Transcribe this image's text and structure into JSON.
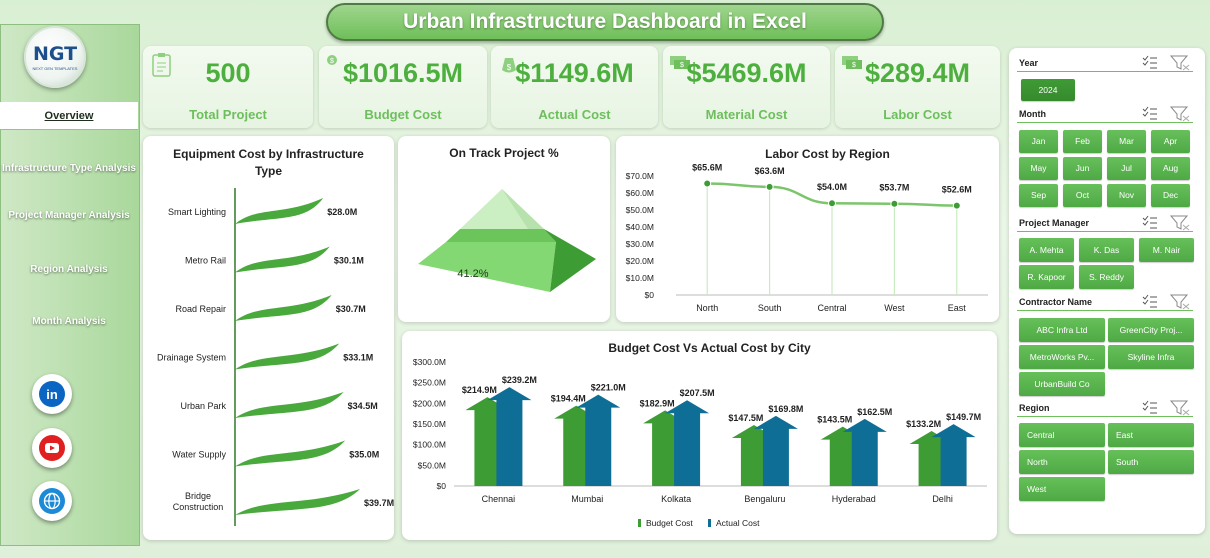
{
  "title": "Urban Infrastructure Dashboard in Excel",
  "logo": {
    "main": "NGT",
    "sub": "NEXT GEN TEMPLATES"
  },
  "nav": [
    "Overview",
    "Infrastructure Type Analysis",
    "Project Manager Analysis",
    "Region Analysis",
    "Month Analysis"
  ],
  "social": [
    "linkedin-icon",
    "youtube-icon",
    "globe-icon"
  ],
  "kpis": [
    {
      "value": "500",
      "label": "Total Project",
      "icon": "clipboard-icon"
    },
    {
      "value": "$1016.5M",
      "label": "Budget Cost",
      "icon": "money-icon"
    },
    {
      "value": "$1149.6M",
      "label": "Actual Cost",
      "icon": "money-bag-icon"
    },
    {
      "value": "$5469.6M",
      "label": "Material Cost",
      "icon": "cash-icon"
    },
    {
      "value": "$289.4M",
      "label": "Labor Cost",
      "icon": "cash-icon"
    }
  ],
  "colors": {
    "green": "#4caf3e",
    "darkgreen": "#3a8f31",
    "blue": "#0f6e95",
    "lightgreen": "#c8ebc0"
  },
  "chart_data": [
    {
      "type": "bar",
      "title": "Equipment Cost by Infrastructure Type",
      "categories": [
        "Smart Lighting",
        "Metro Rail",
        "Road Repair",
        "Drainage System",
        "Urban Park",
        "Water Supply",
        "Bridge Construction"
      ],
      "values": [
        28.0,
        30.1,
        30.7,
        33.1,
        34.5,
        35.0,
        39.7
      ],
      "labels": [
        "$28.0M",
        "$30.1M",
        "$30.7M",
        "$33.1M",
        "$34.5M",
        "$35.0M",
        "$39.7M"
      ],
      "unit": "$M"
    },
    {
      "type": "pie",
      "title": "On Track Project %",
      "values": [
        41.2
      ],
      "labels": [
        "41.2%"
      ]
    },
    {
      "type": "line",
      "title": "Labor Cost by Region",
      "categories": [
        "North",
        "South",
        "Central",
        "West",
        "East"
      ],
      "values": [
        65.6,
        63.6,
        54.0,
        53.7,
        52.6
      ],
      "labels": [
        "$65.6M",
        "$63.6M",
        "$54.0M",
        "$53.7M",
        "$52.6M"
      ],
      "yticks": [
        "$0",
        "$10.0M",
        "$20.0M",
        "$30.0M",
        "$40.0M",
        "$50.0M",
        "$60.0M",
        "$70.0M"
      ],
      "ylim": [
        0,
        70
      ]
    },
    {
      "type": "bar",
      "title": "Budget Cost Vs Actual Cost by City",
      "categories": [
        "Chennai",
        "Mumbai",
        "Kolkata",
        "Bengaluru",
        "Hyderabad",
        "Delhi"
      ],
      "series": [
        {
          "name": "Budget Cost",
          "values": [
            214.9,
            194.4,
            182.9,
            147.5,
            143.5,
            133.2
          ],
          "labels": [
            "$214.9M",
            "$194.4M",
            "$182.9M",
            "$147.5M",
            "$143.5M",
            "$133.2M"
          ]
        },
        {
          "name": "Actual Cost",
          "values": [
            239.2,
            221.0,
            207.5,
            169.8,
            162.5,
            149.7
          ],
          "labels": [
            "$239.2M",
            "$221.0M",
            "$207.5M",
            "$169.8M",
            "$162.5M",
            "$149.7M"
          ]
        }
      ],
      "yticks": [
        "$0",
        "$50.0M",
        "$100.0M",
        "$150.0M",
        "$200.0M",
        "$250.0M",
        "$300.0M"
      ],
      "ylim": [
        0,
        300
      ]
    }
  ],
  "slicers": {
    "year": {
      "label": "Year",
      "items": [
        "2024"
      ]
    },
    "month": {
      "label": "Month",
      "items": [
        "Jan",
        "Feb",
        "Mar",
        "Apr",
        "May",
        "Jun",
        "Jul",
        "Aug",
        "Sep",
        "Oct",
        "Nov",
        "Dec"
      ]
    },
    "manager": {
      "label": "Project Manager",
      "items": [
        "A. Mehta",
        "K. Das",
        "M. Nair",
        "R. Kapoor",
        "S. Reddy"
      ]
    },
    "contractor": {
      "label": "Contractor Name",
      "items": [
        "ABC Infra Ltd",
        "GreenCity Proj...",
        "MetroWorks Pv...",
        "Skyline Infra",
        "UrbanBuild Co"
      ]
    },
    "region": {
      "label": "Region",
      "items": [
        "Central",
        "East",
        "North",
        "South",
        "West"
      ]
    }
  }
}
